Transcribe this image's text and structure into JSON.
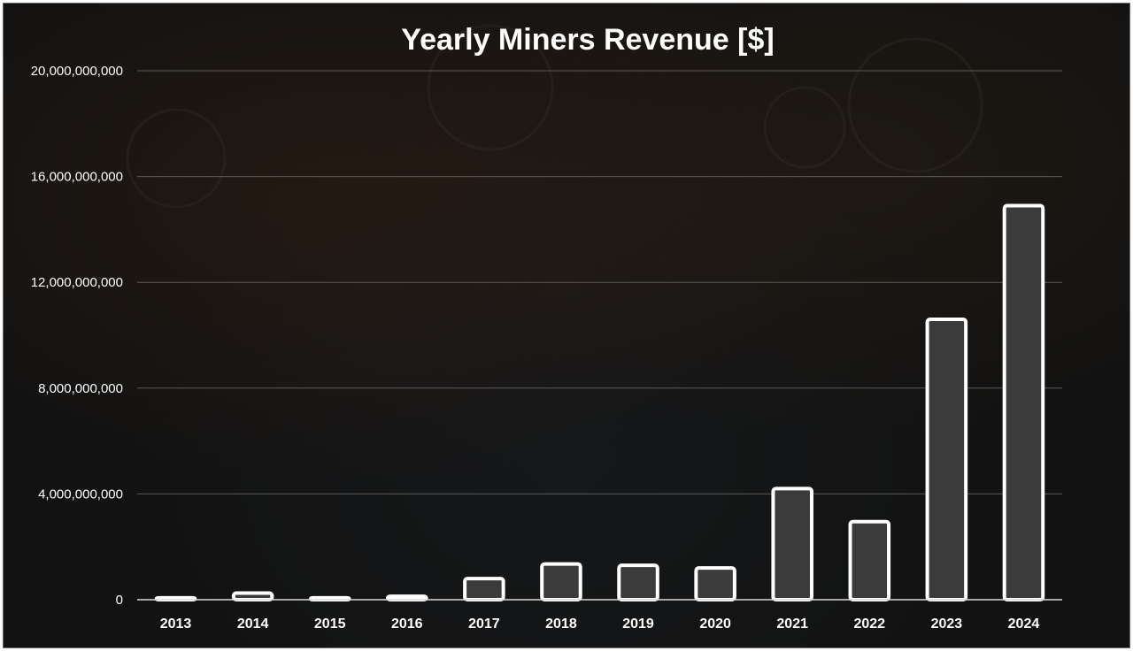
{
  "chart_data": {
    "type": "bar",
    "title": "Yearly Miners Revenue [$]",
    "xlabel": "",
    "ylabel": "",
    "categories": [
      "2013",
      "2014",
      "2015",
      "2016",
      "2017",
      "2018",
      "2019",
      "2020",
      "2021",
      "2022",
      "2023",
      "2024"
    ],
    "values": [
      70000000,
      250000000,
      70000000,
      130000000,
      800000000,
      1350000000,
      1300000000,
      1200000000,
      4200000000,
      2950000000,
      10600000000,
      14900000000
    ],
    "ylim": [
      0,
      20000000000
    ],
    "yticks": [
      0,
      4000000000,
      8000000000,
      12000000000,
      16000000000,
      20000000000
    ],
    "ytick_labels": [
      "0",
      "4,000,000,000",
      "8,000,000,000",
      "12,000,000,000",
      "16,000,000,000",
      "20,000,000,000"
    ],
    "grid": true,
    "legend": "none",
    "colors": {
      "background": "#121212",
      "bar_fill": "#3b3b3b",
      "bar_outline": "#ffffff",
      "text": "#ffffff",
      "grid": "#5a5a5a"
    }
  }
}
